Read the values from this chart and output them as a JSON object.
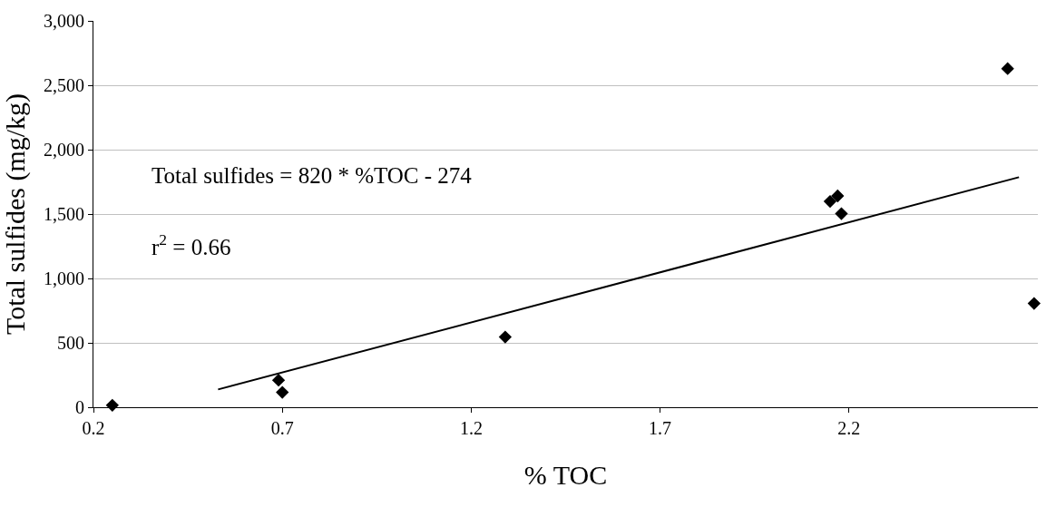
{
  "chart_data": {
    "type": "scatter",
    "xlabel": "% TOC",
    "ylabel": "Total sulfides (mg/kg)",
    "xlim": [
      0.2,
      2.7
    ],
    "xticks": [
      0.2,
      0.7,
      1.2,
      1.7,
      2.2
    ],
    "ylim": [
      0,
      3000
    ],
    "yticks": [
      0,
      500,
      {
        "value": 1000,
        "label": "1,000"
      },
      {
        "value": 1500,
        "label": "1,500"
      },
      {
        "value": 2000,
        "label": "2,000"
      },
      {
        "value": 2500,
        "label": "2,500"
      },
      {
        "value": 3000,
        "label": "3,000"
      }
    ],
    "grid": "y",
    "marker": "diamond",
    "series": [
      {
        "color": "#000000",
        "x": [
          0.25,
          0.69,
          0.7,
          1.29,
          2.15,
          2.17,
          2.18,
          2.62,
          2.69
        ],
        "values": [
          15,
          210,
          116,
          545,
          1598,
          1641,
          1503,
          2629,
          806
        ]
      },
      {
        "type": "line",
        "color": "#000000",
        "marker": "none",
        "x": [
          0.53,
          2.65
        ],
        "values": [
          138,
          1786
        ]
      }
    ],
    "annotations": [
      "Total sulfides = 820 * %TOC - 274",
      "r$^{2}$ = 0.66"
    ]
  }
}
